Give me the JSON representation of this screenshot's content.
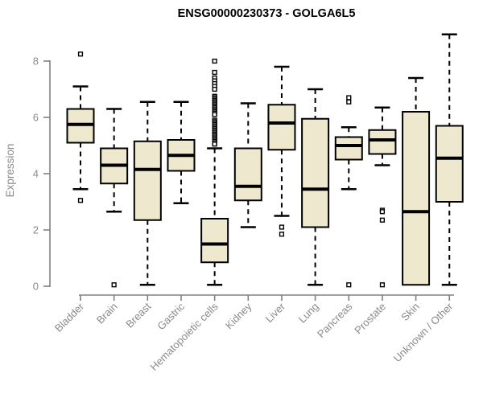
{
  "title": "ENSG00000230373 - GOLGA6L5",
  "colors": {
    "background": "#ffffff",
    "box_fill": "#EDE8CE",
    "box_stroke": "#000000",
    "median": "#000000",
    "whisker": "#000000",
    "outlier_stroke": "#000000",
    "outlier_fill": "#ffffff",
    "axis_line": "#808080",
    "tick_text": "#8a8a8a",
    "title_text": "#000000"
  },
  "chart_data": {
    "type": "boxplot",
    "title": "ENSG00000230373 - GOLGA6L5",
    "xlabel": "",
    "ylabel": "Expression",
    "ylim": [
      0,
      8
    ],
    "yticks": [
      0,
      2,
      4,
      6,
      8
    ],
    "grid": false,
    "legend": null,
    "categories": [
      "Bladder",
      "Brain",
      "Breast",
      "Gastric",
      "Hematopoietic cells",
      "Kidney",
      "Liver",
      "Lung",
      "Pancreas",
      "Prostate",
      "Skin",
      "Unknown / Other"
    ],
    "series": [
      {
        "category": "Bladder",
        "whisker_low": 3.45,
        "q1": 5.1,
        "median": 5.75,
        "q3": 6.3,
        "whisker_high": 7.1,
        "outliers": [
          8.25,
          3.05
        ]
      },
      {
        "category": "Brain",
        "whisker_low": 2.65,
        "q1": 3.65,
        "median": 4.3,
        "q3": 4.9,
        "whisker_high": 6.3,
        "outliers": [
          0.05
        ]
      },
      {
        "category": "Breast",
        "whisker_low": 0.05,
        "q1": 2.35,
        "median": 4.15,
        "q3": 5.15,
        "whisker_high": 6.55,
        "outliers": []
      },
      {
        "category": "Gastric",
        "whisker_low": 2.95,
        "q1": 4.1,
        "median": 4.65,
        "q3": 5.2,
        "whisker_high": 6.55,
        "outliers": []
      },
      {
        "category": "Hematopoietic cells",
        "whisker_low": 0.05,
        "q1": 0.85,
        "median": 1.5,
        "q3": 2.4,
        "whisker_high": 4.9,
        "outliers": [
          8.0,
          7.6,
          7.4,
          7.3,
          7.2,
          7.1,
          7.0,
          6.75,
          6.7,
          6.65,
          6.6,
          6.55,
          6.5,
          6.45,
          6.4,
          6.35,
          6.3,
          6.25,
          6.2,
          6.15,
          6.1,
          5.9,
          5.85,
          5.8,
          5.75,
          5.7,
          5.65,
          5.6,
          5.55,
          5.5,
          5.45,
          5.4,
          5.35,
          5.3,
          5.25,
          5.2,
          5.15,
          5.1,
          5.05
        ]
      },
      {
        "category": "Kidney",
        "whisker_low": 2.1,
        "q1": 3.05,
        "median": 3.55,
        "q3": 4.9,
        "whisker_high": 6.5,
        "outliers": []
      },
      {
        "category": "Liver",
        "whisker_low": 2.5,
        "q1": 4.85,
        "median": 5.8,
        "q3": 6.45,
        "whisker_high": 7.8,
        "outliers": [
          2.1,
          1.85
        ]
      },
      {
        "category": "Lung",
        "whisker_low": 0.05,
        "q1": 2.1,
        "median": 3.45,
        "q3": 5.95,
        "whisker_high": 7.0,
        "outliers": []
      },
      {
        "category": "Pancreas",
        "whisker_low": 3.45,
        "q1": 4.5,
        "median": 5.0,
        "q3": 5.3,
        "whisker_high": 5.65,
        "outliers": [
          6.7,
          6.55,
          0.05
        ]
      },
      {
        "category": "Prostate",
        "whisker_low": 4.3,
        "q1": 4.7,
        "median": 5.2,
        "q3": 5.55,
        "whisker_high": 6.35,
        "outliers": [
          2.7,
          2.65,
          2.35,
          0.05
        ]
      },
      {
        "category": "Skin",
        "whisker_low": 0.05,
        "q1": 0.05,
        "median": 2.65,
        "q3": 6.2,
        "whisker_high": 7.4,
        "outliers": []
      },
      {
        "category": "Unknown / Other",
        "whisker_low": 0.05,
        "q1": 3.0,
        "median": 4.55,
        "q3": 5.7,
        "whisker_high": 8.95,
        "outliers": []
      }
    ]
  }
}
